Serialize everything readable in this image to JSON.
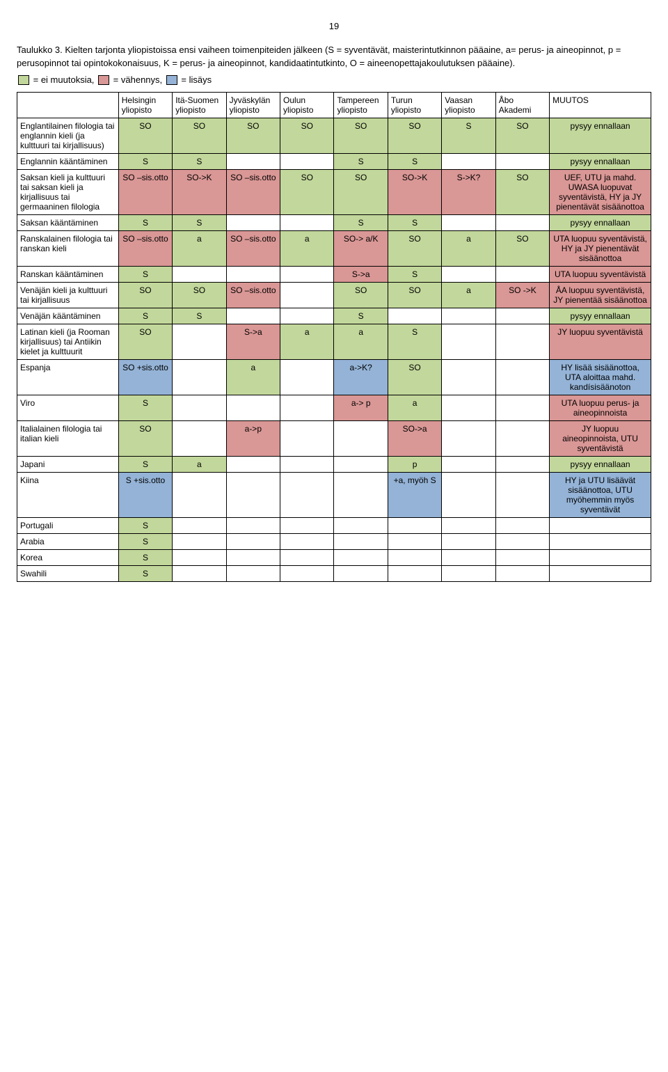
{
  "page_number": "19",
  "intro": "Taulukko 3. Kielten tarjonta yliopistoissa ensi vaiheen toimenpiteiden jälkeen (S = syventävät, maisterintutkinnon pääaine, a= perus- ja aineopinnot, p = perusopinnot tai opintokokonaisuus, K = perus- ja aineopinnot, kandidaatintutkinto, O = aineenopettajakoulutuksen pääaine).",
  "legend": {
    "prefix": "= ei muutoksia,",
    "mid": "= vähennys,",
    "suffix": "= lisäys"
  },
  "colors": {
    "green": "#c2d79b",
    "red": "#d99795",
    "blue": "#94b3d6",
    "white": "#ffffff",
    "border": "#000000"
  },
  "col_widths": [
    "16%",
    "8.5%",
    "8.5%",
    "8.5%",
    "8.5%",
    "8.5%",
    "8.5%",
    "8.5%",
    "8.5%",
    "16%"
  ],
  "headers": [
    "",
    "Helsingin yliopisto",
    "Itä-Suomen yliopisto",
    "Jyväskylän yliopisto",
    "Oulun yliopisto",
    "Tampereen yliopisto",
    "Turun yliopisto",
    "Vaasan yliopisto",
    "Åbo Akademi",
    "MUUTOS"
  ],
  "rows": [
    {
      "label": "Englantilainen filologia tai englannin kieli (ja kulttuuri tai kirjallisuus)",
      "cells": [
        {
          "t": "SO",
          "c": "green"
        },
        {
          "t": "SO",
          "c": "green"
        },
        {
          "t": "SO",
          "c": "green"
        },
        {
          "t": "SO",
          "c": "green"
        },
        {
          "t": "SO",
          "c": "green"
        },
        {
          "t": "SO",
          "c": "green"
        },
        {
          "t": "S",
          "c": "green"
        },
        {
          "t": "SO",
          "c": "green"
        }
      ],
      "muutos": {
        "t": "pysyy ennallaan",
        "c": "green"
      }
    },
    {
      "label": "Englannin kääntäminen",
      "cells": [
        {
          "t": "S",
          "c": "green"
        },
        {
          "t": "S",
          "c": "green"
        },
        {
          "t": "",
          "c": "white"
        },
        {
          "t": "",
          "c": "white"
        },
        {
          "t": "S",
          "c": "green"
        },
        {
          "t": "S",
          "c": "green"
        },
        {
          "t": "",
          "c": "white"
        },
        {
          "t": "",
          "c": "white"
        }
      ],
      "muutos": {
        "t": "pysyy ennallaan",
        "c": "green"
      }
    },
    {
      "label": "Saksan kieli ja kulttuuri tai saksan kieli ja kirjallisuus tai germaaninen filologia",
      "cells": [
        {
          "t": "SO –sis.otto",
          "c": "red"
        },
        {
          "t": "SO->K",
          "c": "red"
        },
        {
          "t": "SO –sis.otto",
          "c": "red"
        },
        {
          "t": "SO",
          "c": "green"
        },
        {
          "t": "SO",
          "c": "green"
        },
        {
          "t": "SO->K",
          "c": "red"
        },
        {
          "t": "S->K?",
          "c": "red"
        },
        {
          "t": "SO",
          "c": "green"
        }
      ],
      "muutos": {
        "t": "UEF, UTU ja mahd. UWASA luopuvat syventävistä, HY ja JY pienentävät sisäänottoa",
        "c": "red"
      }
    },
    {
      "label": "Saksan kääntäminen",
      "cells": [
        {
          "t": "S",
          "c": "green"
        },
        {
          "t": "S",
          "c": "green"
        },
        {
          "t": "",
          "c": "white"
        },
        {
          "t": "",
          "c": "white"
        },
        {
          "t": "S",
          "c": "green"
        },
        {
          "t": "S",
          "c": "green"
        },
        {
          "t": "",
          "c": "white"
        },
        {
          "t": "",
          "c": "white"
        }
      ],
      "muutos": {
        "t": "pysyy ennallaan",
        "c": "green"
      }
    },
    {
      "label": "Ranskalainen filologia tai ranskan kieli",
      "cells": [
        {
          "t": "SO –sis.otto",
          "c": "red"
        },
        {
          "t": "a",
          "c": "green"
        },
        {
          "t": "SO –sis.otto",
          "c": "red"
        },
        {
          "t": "a",
          "c": "green"
        },
        {
          "t": "SO-> a/K",
          "c": "red"
        },
        {
          "t": "SO",
          "c": "green"
        },
        {
          "t": "a",
          "c": "green"
        },
        {
          "t": "SO",
          "c": "green"
        }
      ],
      "muutos": {
        "t": "UTA luopuu syventävistä, HY ja JY pienentävät sisäänottoa",
        "c": "red"
      }
    },
    {
      "label": "Ranskan kääntäminen",
      "cells": [
        {
          "t": "S",
          "c": "green"
        },
        {
          "t": "",
          "c": "white"
        },
        {
          "t": "",
          "c": "white"
        },
        {
          "t": "",
          "c": "white"
        },
        {
          "t": "S->a",
          "c": "red"
        },
        {
          "t": "S",
          "c": "green"
        },
        {
          "t": "",
          "c": "white"
        },
        {
          "t": "",
          "c": "white"
        }
      ],
      "muutos": {
        "t": "UTA luopuu syventävistä",
        "c": "red"
      }
    },
    {
      "label": "Venäjän kieli ja kulttuuri tai kirjallisuus",
      "cells": [
        {
          "t": "SO",
          "c": "green"
        },
        {
          "t": "SO",
          "c": "green"
        },
        {
          "t": "SO –sis.otto",
          "c": "red"
        },
        {
          "t": "",
          "c": "white"
        },
        {
          "t": "SO",
          "c": "green"
        },
        {
          "t": "SO",
          "c": "green"
        },
        {
          "t": "a",
          "c": "green"
        },
        {
          "t": "SO ->K",
          "c": "red"
        }
      ],
      "muutos": {
        "t": "ÅA luopuu syventävistä, JY pienentää sisäänottoa",
        "c": "red"
      }
    },
    {
      "label": "Venäjän kääntäminen",
      "cells": [
        {
          "t": "S",
          "c": "green"
        },
        {
          "t": "S",
          "c": "green"
        },
        {
          "t": "",
          "c": "white"
        },
        {
          "t": "",
          "c": "white"
        },
        {
          "t": "S",
          "c": "green"
        },
        {
          "t": "",
          "c": "white"
        },
        {
          "t": "",
          "c": "white"
        },
        {
          "t": "",
          "c": "white"
        }
      ],
      "muutos": {
        "t": "pysyy ennallaan",
        "c": "green"
      }
    },
    {
      "label": "Latinan kieli (ja Rooman kirjallisuus) tai Antiikin kielet ja kulttuurit",
      "cells": [
        {
          "t": "SO",
          "c": "green"
        },
        {
          "t": "",
          "c": "white"
        },
        {
          "t": "S->a",
          "c": "red"
        },
        {
          "t": "a",
          "c": "green"
        },
        {
          "t": "a",
          "c": "green"
        },
        {
          "t": "S",
          "c": "green"
        },
        {
          "t": "",
          "c": "white"
        },
        {
          "t": "",
          "c": "white"
        }
      ],
      "muutos": {
        "t": "JY luopuu syventävistä",
        "c": "red"
      }
    },
    {
      "label": "Espanja",
      "cells": [
        {
          "t": "SO +sis.otto",
          "c": "blue"
        },
        {
          "t": "",
          "c": "white"
        },
        {
          "t": "a",
          "c": "green"
        },
        {
          "t": "",
          "c": "white"
        },
        {
          "t": "a->K?",
          "c": "blue"
        },
        {
          "t": "SO",
          "c": "green"
        },
        {
          "t": "",
          "c": "white"
        },
        {
          "t": "",
          "c": "white"
        }
      ],
      "muutos": {
        "t": "HY lisää sisäänottoa, UTA aloittaa mahd. kandísisäänoton",
        "c": "blue"
      }
    },
    {
      "label": "Viro",
      "cells": [
        {
          "t": "S",
          "c": "green"
        },
        {
          "t": "",
          "c": "white"
        },
        {
          "t": "",
          "c": "white"
        },
        {
          "t": "",
          "c": "white"
        },
        {
          "t": "a-> p",
          "c": "red"
        },
        {
          "t": "a",
          "c": "green"
        },
        {
          "t": "",
          "c": "white"
        },
        {
          "t": "",
          "c": "white"
        }
      ],
      "muutos": {
        "t": "UTA luopuu perus- ja aineopinnoista",
        "c": "red"
      }
    },
    {
      "label": "Italialainen filologia tai italian kieli",
      "cells": [
        {
          "t": "SO",
          "c": "green"
        },
        {
          "t": "",
          "c": "white"
        },
        {
          "t": "a->p",
          "c": "red"
        },
        {
          "t": "",
          "c": "white"
        },
        {
          "t": "",
          "c": "white"
        },
        {
          "t": "SO->a",
          "c": "red"
        },
        {
          "t": "",
          "c": "white"
        },
        {
          "t": "",
          "c": "white"
        }
      ],
      "muutos": {
        "t": "JY luopuu aineopinnoista, UTU syventävistä",
        "c": "red"
      }
    },
    {
      "label": "Japani",
      "cells": [
        {
          "t": "S",
          "c": "green"
        },
        {
          "t": "a",
          "c": "green"
        },
        {
          "t": "",
          "c": "white"
        },
        {
          "t": "",
          "c": "white"
        },
        {
          "t": "",
          "c": "white"
        },
        {
          "t": "p",
          "c": "green"
        },
        {
          "t": "",
          "c": "white"
        },
        {
          "t": "",
          "c": "white"
        }
      ],
      "muutos": {
        "t": "pysyy ennallaan",
        "c": "green"
      }
    },
    {
      "label": "Kiina",
      "cells": [
        {
          "t": "S +sis.otto",
          "c": "blue"
        },
        {
          "t": "",
          "c": "white"
        },
        {
          "t": "",
          "c": "white"
        },
        {
          "t": "",
          "c": "white"
        },
        {
          "t": "",
          "c": "white"
        },
        {
          "t": "+a, myöh S",
          "c": "blue"
        },
        {
          "t": "",
          "c": "white"
        },
        {
          "t": "",
          "c": "white"
        }
      ],
      "muutos": {
        "t": "HY ja UTU lisäävät sisäänottoa, UTU myöhemmin myös syventävät",
        "c": "blue"
      }
    },
    {
      "label": "Portugali",
      "cells": [
        {
          "t": "S",
          "c": "green"
        },
        {
          "t": "",
          "c": "white"
        },
        {
          "t": "",
          "c": "white"
        },
        {
          "t": "",
          "c": "white"
        },
        {
          "t": "",
          "c": "white"
        },
        {
          "t": "",
          "c": "white"
        },
        {
          "t": "",
          "c": "white"
        },
        {
          "t": "",
          "c": "white"
        }
      ],
      "muutos": {
        "t": "",
        "c": "white"
      }
    },
    {
      "label": "Arabia",
      "cells": [
        {
          "t": "S",
          "c": "green"
        },
        {
          "t": "",
          "c": "white"
        },
        {
          "t": "",
          "c": "white"
        },
        {
          "t": "",
          "c": "white"
        },
        {
          "t": "",
          "c": "white"
        },
        {
          "t": "",
          "c": "white"
        },
        {
          "t": "",
          "c": "white"
        },
        {
          "t": "",
          "c": "white"
        }
      ],
      "muutos": {
        "t": "",
        "c": "white"
      }
    },
    {
      "label": "Korea",
      "cells": [
        {
          "t": "S",
          "c": "green"
        },
        {
          "t": "",
          "c": "white"
        },
        {
          "t": "",
          "c": "white"
        },
        {
          "t": "",
          "c": "white"
        },
        {
          "t": "",
          "c": "white"
        },
        {
          "t": "",
          "c": "white"
        },
        {
          "t": "",
          "c": "white"
        },
        {
          "t": "",
          "c": "white"
        }
      ],
      "muutos": {
        "t": "",
        "c": "white"
      }
    },
    {
      "label": "Swahili",
      "cells": [
        {
          "t": "S",
          "c": "green"
        },
        {
          "t": "",
          "c": "white"
        },
        {
          "t": "",
          "c": "white"
        },
        {
          "t": "",
          "c": "white"
        },
        {
          "t": "",
          "c": "white"
        },
        {
          "t": "",
          "c": "white"
        },
        {
          "t": "",
          "c": "white"
        },
        {
          "t": "",
          "c": "white"
        }
      ],
      "muutos": {
        "t": "",
        "c": "white"
      }
    }
  ]
}
